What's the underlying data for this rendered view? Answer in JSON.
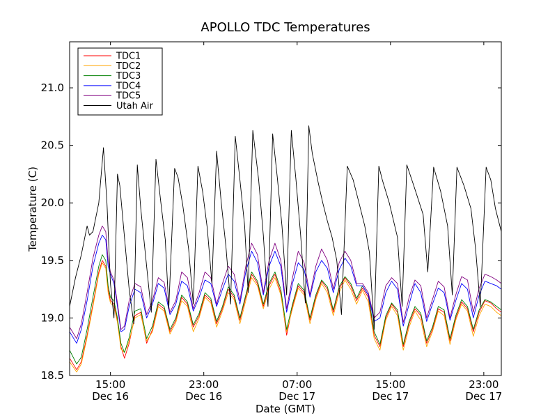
{
  "chart_data": {
    "type": "line",
    "title": "APOLLO TDC Temperatures",
    "xlabel": "Date (GMT)",
    "ylabel": "Temperature (C)",
    "xlim": [
      11.5,
      48.5
    ],
    "ylim": [
      18.5,
      21.4
    ],
    "yticks": [
      18.5,
      19.0,
      19.5,
      20.0,
      20.5,
      21.0
    ],
    "ytick_labels": [
      "18.5",
      "19.0",
      "19.5",
      "20.0",
      "20.5",
      "21.0"
    ],
    "xticks": [
      {
        "x": 15,
        "time": "15:00",
        "date": "Dec 16"
      },
      {
        "x": 23,
        "time": "23:00",
        "date": "Dec 16"
      },
      {
        "x": 31,
        "time": "07:00",
        "date": "Dec 17"
      },
      {
        "x": 39,
        "time": "15:00",
        "date": "Dec 17"
      },
      {
        "x": 47,
        "time": "23:00",
        "date": "Dec 17"
      }
    ],
    "legend_position": "top-left",
    "grid": false,
    "series": [
      {
        "name": "TDC1",
        "color": "#ff0000",
        "x": [
          11.5,
          12.1,
          12.5,
          13.0,
          13.5,
          14.0,
          14.3,
          14.6,
          14.8,
          15.0,
          15.3,
          15.6,
          15.9,
          16.2,
          16.6,
          17.1,
          17.6,
          18.1,
          18.6,
          19.1,
          19.6,
          20.1,
          20.6,
          21.1,
          21.6,
          22.1,
          22.6,
          23.1,
          23.6,
          24.1,
          24.6,
          25.1,
          25.6,
          26.1,
          26.6,
          27.1,
          27.6,
          28.1,
          28.6,
          29.1,
          29.6,
          30.1,
          30.6,
          31.1,
          31.6,
          32.1,
          32.6,
          33.1,
          33.6,
          34.1,
          34.6,
          35.1,
          35.6,
          36.1,
          36.6,
          37.1,
          37.6,
          38.1,
          38.6,
          39.1,
          39.6,
          40.1,
          40.6,
          41.1,
          41.6,
          42.1,
          42.6,
          43.1,
          43.6,
          44.1,
          44.6,
          45.1,
          45.6,
          46.1,
          46.6,
          47.1,
          47.6,
          48.1,
          48.5
        ],
        "y": [
          18.65,
          18.55,
          18.62,
          18.85,
          19.12,
          19.4,
          19.5,
          19.45,
          19.25,
          19.15,
          19.12,
          18.98,
          18.75,
          18.65,
          18.78,
          19.02,
          19.05,
          18.78,
          18.9,
          19.12,
          19.08,
          18.88,
          18.98,
          19.18,
          19.12,
          18.92,
          19.02,
          19.2,
          19.15,
          18.95,
          19.08,
          19.25,
          19.18,
          18.98,
          19.18,
          19.38,
          19.3,
          19.1,
          19.28,
          19.38,
          19.22,
          18.85,
          19.1,
          19.28,
          19.22,
          18.98,
          19.18,
          19.32,
          19.25,
          19.05,
          19.25,
          19.35,
          19.28,
          19.15,
          19.26,
          19.18,
          18.85,
          18.75,
          19.0,
          19.12,
          19.05,
          18.75,
          18.95,
          19.08,
          19.02,
          18.78,
          18.9,
          19.08,
          19.05,
          18.8,
          19.0,
          19.14,
          19.08,
          18.88,
          19.05,
          19.15,
          19.13,
          19.08,
          19.05
        ]
      },
      {
        "name": "TDC2",
        "color": "#ffa500",
        "x": [
          11.5,
          12.1,
          12.5,
          13.0,
          13.5,
          14.0,
          14.3,
          14.6,
          14.8,
          15.0,
          15.3,
          15.6,
          15.9,
          16.2,
          16.6,
          17.1,
          17.6,
          18.1,
          18.6,
          19.1,
          19.6,
          20.1,
          20.6,
          21.1,
          21.6,
          22.1,
          22.6,
          23.1,
          23.6,
          24.1,
          24.6,
          25.1,
          25.6,
          26.1,
          26.6,
          27.1,
          27.6,
          28.1,
          28.6,
          29.1,
          29.6,
          30.1,
          30.6,
          31.1,
          31.6,
          32.1,
          32.6,
          33.1,
          33.6,
          34.1,
          34.6,
          35.1,
          35.6,
          36.1,
          36.6,
          37.1,
          37.6,
          38.1,
          38.6,
          39.1,
          39.6,
          40.1,
          40.6,
          41.1,
          41.6,
          42.1,
          42.6,
          43.1,
          43.6,
          44.1,
          44.6,
          45.1,
          45.6,
          46.1,
          46.6,
          47.1,
          47.6,
          48.1,
          48.5
        ],
        "y": [
          18.62,
          18.53,
          18.6,
          18.83,
          19.1,
          19.38,
          19.48,
          19.43,
          19.22,
          19.13,
          19.1,
          18.96,
          18.73,
          18.7,
          18.8,
          19.0,
          19.03,
          18.8,
          18.88,
          19.1,
          19.06,
          18.86,
          18.96,
          19.15,
          19.1,
          18.88,
          19.0,
          19.18,
          19.13,
          18.92,
          19.06,
          19.22,
          19.16,
          18.95,
          19.15,
          19.35,
          19.28,
          19.08,
          19.25,
          19.35,
          19.2,
          18.88,
          19.08,
          19.26,
          19.2,
          18.95,
          19.16,
          19.3,
          19.22,
          19.02,
          19.22,
          19.33,
          19.25,
          19.12,
          19.24,
          19.14,
          18.82,
          18.72,
          18.98,
          19.1,
          19.02,
          18.72,
          18.92,
          19.06,
          18.98,
          18.75,
          18.88,
          19.06,
          19.02,
          18.77,
          18.98,
          19.12,
          19.06,
          18.84,
          19.02,
          19.12,
          19.1,
          19.05,
          19.02
        ]
      },
      {
        "name": "TDC3",
        "color": "#008000",
        "x": [
          11.5,
          12.1,
          12.5,
          13.0,
          13.5,
          14.0,
          14.3,
          14.6,
          14.8,
          15.0,
          15.3,
          15.6,
          15.9,
          16.2,
          16.6,
          17.1,
          17.6,
          18.1,
          18.6,
          19.1,
          19.6,
          20.1,
          20.6,
          21.1,
          21.6,
          22.1,
          22.6,
          23.1,
          23.6,
          24.1,
          24.6,
          25.1,
          25.6,
          26.1,
          26.6,
          27.1,
          27.6,
          28.1,
          28.6,
          29.1,
          29.6,
          30.1,
          30.6,
          31.1,
          31.6,
          32.1,
          32.6,
          33.1,
          33.6,
          34.1,
          34.6,
          35.1,
          35.6,
          36.1,
          36.6,
          37.1,
          37.6,
          38.1,
          38.6,
          39.1,
          39.6,
          40.1,
          40.6,
          41.1,
          41.6,
          42.1,
          42.6,
          43.1,
          43.6,
          44.1,
          44.6,
          45.1,
          45.6,
          46.1,
          46.6,
          47.1,
          47.6,
          48.1,
          48.5
        ],
        "y": [
          18.72,
          18.6,
          18.66,
          18.9,
          19.18,
          19.45,
          19.55,
          19.5,
          19.28,
          19.18,
          19.15,
          19.0,
          18.78,
          18.7,
          18.83,
          19.06,
          19.08,
          18.82,
          18.93,
          19.14,
          19.1,
          18.9,
          19.0,
          19.2,
          19.14,
          18.94,
          19.04,
          19.22,
          19.17,
          18.97,
          19.1,
          19.27,
          19.2,
          19.0,
          19.2,
          19.4,
          19.32,
          19.12,
          19.3,
          19.4,
          19.25,
          18.9,
          19.12,
          19.3,
          19.24,
          19.0,
          19.2,
          19.33,
          19.27,
          19.07,
          19.27,
          19.36,
          19.3,
          19.17,
          19.28,
          19.2,
          18.88,
          18.77,
          19.02,
          19.13,
          19.07,
          18.77,
          18.97,
          19.1,
          19.04,
          18.8,
          18.92,
          19.1,
          19.07,
          18.82,
          19.02,
          19.16,
          19.1,
          18.9,
          19.07,
          19.16,
          19.14,
          19.1,
          19.07
        ]
      },
      {
        "name": "TDC4",
        "color": "#0000ff",
        "x": [
          11.5,
          12.1,
          12.5,
          13.0,
          13.5,
          14.0,
          14.3,
          14.6,
          14.8,
          15.0,
          15.3,
          15.6,
          15.9,
          16.2,
          16.6,
          17.1,
          17.6,
          18.1,
          18.6,
          19.1,
          19.6,
          20.1,
          20.6,
          21.1,
          21.6,
          22.1,
          22.6,
          23.1,
          23.6,
          24.1,
          24.6,
          25.1,
          25.6,
          26.1,
          26.6,
          27.1,
          27.6,
          28.1,
          28.6,
          29.1,
          29.6,
          30.1,
          30.6,
          31.1,
          31.6,
          32.1,
          32.6,
          33.1,
          33.6,
          34.1,
          34.6,
          35.1,
          35.6,
          36.1,
          36.6,
          37.1,
          37.6,
          38.1,
          38.6,
          39.1,
          39.6,
          40.1,
          40.6,
          41.1,
          41.6,
          42.1,
          42.6,
          43.1,
          43.6,
          44.1,
          44.6,
          45.1,
          45.6,
          46.1,
          46.6,
          47.1,
          47.6,
          48.1,
          48.5
        ],
        "y": [
          18.88,
          18.78,
          18.9,
          19.15,
          19.45,
          19.65,
          19.72,
          19.68,
          19.45,
          19.38,
          19.3,
          19.1,
          18.88,
          18.9,
          19.1,
          19.25,
          19.22,
          19.0,
          19.12,
          19.3,
          19.26,
          19.03,
          19.12,
          19.32,
          19.28,
          19.06,
          19.18,
          19.33,
          19.3,
          19.1,
          19.25,
          19.38,
          19.32,
          19.12,
          19.4,
          19.58,
          19.48,
          19.2,
          19.45,
          19.58,
          19.45,
          19.05,
          19.3,
          19.48,
          19.42,
          19.18,
          19.4,
          19.5,
          19.43,
          19.22,
          19.42,
          19.52,
          19.45,
          19.28,
          19.28,
          19.2,
          18.97,
          19.0,
          19.22,
          19.32,
          19.25,
          18.93,
          19.12,
          19.3,
          19.22,
          18.97,
          19.12,
          19.26,
          19.22,
          18.98,
          19.15,
          19.3,
          19.25,
          19.0,
          19.2,
          19.32,
          19.3,
          19.28,
          19.25
        ]
      },
      {
        "name": "TDC5",
        "color": "#800080",
        "x": [
          11.5,
          12.1,
          12.5,
          13.0,
          13.5,
          14.0,
          14.3,
          14.6,
          14.8,
          15.0,
          15.3,
          15.6,
          15.9,
          16.2,
          16.6,
          17.1,
          17.6,
          18.1,
          18.6,
          19.1,
          19.6,
          20.1,
          20.6,
          21.1,
          21.6,
          22.1,
          22.6,
          23.1,
          23.6,
          24.1,
          24.6,
          25.1,
          25.6,
          26.1,
          26.6,
          27.1,
          27.6,
          28.1,
          28.6,
          29.1,
          29.6,
          30.1,
          30.6,
          31.1,
          31.6,
          32.1,
          32.6,
          33.1,
          33.6,
          34.1,
          34.6,
          35.1,
          35.6,
          36.1,
          36.6,
          37.1,
          37.6,
          38.1,
          38.6,
          39.1,
          39.6,
          40.1,
          40.6,
          41.1,
          41.6,
          42.1,
          42.6,
          43.1,
          43.6,
          44.1,
          44.6,
          45.1,
          45.6,
          46.1,
          46.6,
          47.1,
          47.6,
          48.1,
          48.5
        ],
        "y": [
          18.92,
          18.82,
          18.95,
          19.22,
          19.52,
          19.72,
          19.8,
          19.75,
          19.5,
          19.4,
          19.33,
          19.13,
          18.9,
          18.93,
          19.15,
          19.3,
          19.27,
          19.03,
          19.15,
          19.35,
          19.31,
          19.05,
          19.15,
          19.4,
          19.35,
          19.08,
          19.22,
          19.4,
          19.35,
          19.12,
          19.3,
          19.45,
          19.38,
          19.15,
          19.45,
          19.65,
          19.55,
          19.22,
          19.5,
          19.65,
          19.5,
          19.08,
          19.35,
          19.58,
          19.48,
          19.2,
          19.45,
          19.6,
          19.5,
          19.25,
          19.48,
          19.58,
          19.5,
          19.3,
          19.3,
          19.22,
          19.0,
          19.05,
          19.28,
          19.35,
          19.3,
          18.96,
          19.18,
          19.33,
          19.28,
          19.0,
          19.16,
          19.32,
          19.27,
          19.0,
          19.2,
          19.36,
          19.33,
          19.05,
          19.26,
          19.38,
          19.36,
          19.33,
          19.3
        ]
      },
      {
        "name": "Utah Air",
        "color": "#000000",
        "x": [
          11.5,
          12.0,
          12.5,
          13.0,
          13.2,
          13.5,
          14.0,
          14.4,
          14.7,
          15.0,
          15.3,
          15.6,
          15.8,
          16.2,
          16.6,
          17.0,
          17.3,
          17.6,
          18.0,
          18.5,
          18.9,
          19.3,
          19.7,
          20.0,
          20.5,
          20.8,
          21.2,
          21.7,
          22.1,
          22.5,
          22.9,
          23.3,
          23.7,
          24.1,
          24.5,
          24.9,
          25.3,
          25.7,
          26.1,
          26.5,
          26.8,
          27.2,
          27.7,
          28.1,
          28.5,
          28.9,
          29.3,
          29.7,
          30.1,
          30.5,
          30.9,
          31.3,
          31.7,
          32.0,
          32.3,
          32.8,
          33.2,
          33.6,
          34.0,
          34.4,
          34.8,
          35.3,
          35.8,
          36.3,
          36.8,
          37.2,
          37.6,
          38.0,
          38.3,
          38.9,
          39.6,
          40.0,
          40.4,
          41.0,
          41.8,
          42.2,
          42.7,
          43.3,
          43.9,
          44.3,
          44.7,
          45.3,
          45.9,
          46.3,
          46.7,
          47.2,
          47.6,
          48.0,
          48.5
        ],
        "y": [
          19.1,
          19.35,
          19.55,
          19.8,
          19.72,
          19.75,
          20.0,
          20.48,
          20.0,
          19.3,
          19.0,
          20.25,
          20.15,
          19.7,
          19.25,
          18.95,
          20.33,
          19.95,
          19.55,
          19.05,
          20.38,
          20.02,
          19.68,
          19.08,
          20.3,
          20.22,
          19.98,
          19.6,
          19.12,
          20.32,
          20.1,
          19.78,
          19.3,
          20.45,
          20.0,
          19.62,
          19.12,
          20.58,
          20.2,
          19.8,
          19.22,
          20.63,
          20.2,
          19.72,
          19.1,
          20.6,
          20.22,
          19.8,
          19.2,
          20.63,
          20.2,
          19.72,
          19.13,
          20.67,
          20.43,
          20.18,
          20.0,
          19.84,
          19.7,
          19.5,
          19.03,
          20.32,
          20.2,
          20.0,
          19.8,
          19.57,
          18.9,
          20.32,
          20.2,
          20.0,
          19.7,
          19.1,
          20.33,
          20.15,
          19.9,
          19.4,
          20.31,
          20.1,
          19.8,
          19.2,
          20.31,
          20.15,
          19.95,
          19.6,
          19.1,
          20.31,
          20.2,
          19.95,
          19.75
        ]
      }
    ]
  }
}
